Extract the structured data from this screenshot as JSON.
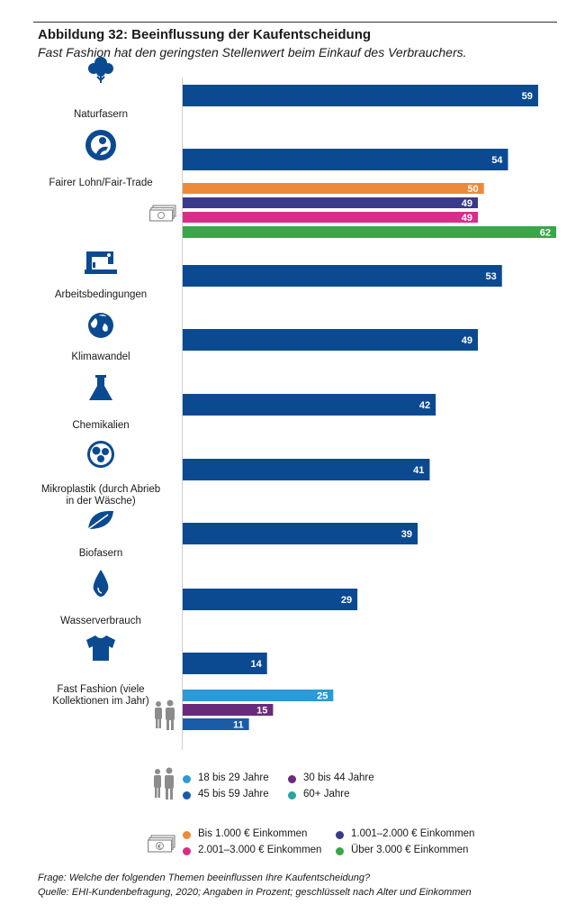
{
  "header": {
    "title": "Abbildung 32: Beeinflussung der Kaufentscheidung",
    "subtitle": "Fast Fashion hat den geringsten Stellenwert beim Einkauf des Verbrauchers."
  },
  "colors": {
    "total": "#0b4a91",
    "age_18_29": "#2b9ad6",
    "age_30_44": "#6a2a7c",
    "age_45_59": "#1a5ca8",
    "age_60plus": "#26a6a0",
    "inc_bis_1000": "#ec8a3a",
    "inc_1001_2000": "#3a3a8c",
    "inc_2001_3000": "#d92d8a",
    "inc_ueber_3000": "#3aa64a",
    "icon": "#0b4a91",
    "people_icon": "#8c8c8c"
  },
  "chart_data": {
    "type": "bar",
    "orientation": "horizontal",
    "unit": "Prozent",
    "xlim": [
      0,
      62
    ],
    "categories": [
      {
        "label": "Naturfasern",
        "icon": "cotton-plant-icon",
        "bars": [
          {
            "series": "total",
            "value": 59
          }
        ]
      },
      {
        "label": "Fairer Lohn/Fair-Trade",
        "icon": "handshake-icon",
        "bars": [
          {
            "series": "total",
            "value": 54
          },
          {
            "series": "inc_bis_1000",
            "value": 50
          },
          {
            "series": "inc_1001_2000",
            "value": 49
          },
          {
            "series": "inc_2001_3000",
            "value": 49
          },
          {
            "series": "inc_ueber_3000",
            "value": 62
          }
        ]
      },
      {
        "label": "Arbeitsbedingungen",
        "icon": "sewing-machine-icon",
        "bars": [
          {
            "series": "total",
            "value": 53
          }
        ]
      },
      {
        "label": "Klimawandel",
        "icon": "globe-icon",
        "bars": [
          {
            "series": "total",
            "value": 49
          }
        ]
      },
      {
        "label": "Chemikalien",
        "icon": "flask-icon",
        "bars": [
          {
            "series": "total",
            "value": 42
          }
        ]
      },
      {
        "label": "Mikroplastik (durch Abrieb\nin der Wäsche)",
        "icon": "microplastic-icon",
        "bars": [
          {
            "series": "total",
            "value": 41
          }
        ]
      },
      {
        "label": "Biofasern",
        "icon": "leaf-icon",
        "bars": [
          {
            "series": "total",
            "value": 39
          }
        ]
      },
      {
        "label": "Wasserverbrauch",
        "icon": "water-drop-icon",
        "bars": [
          {
            "series": "total",
            "value": 29
          }
        ]
      },
      {
        "label": "Fast Fashion (viele\nKollektionen im Jahr)",
        "icon": "tshirt-icon",
        "bars": [
          {
            "series": "total",
            "value": 14
          },
          {
            "series": "age_18_29",
            "value": 25
          },
          {
            "series": "age_30_44",
            "value": 15
          },
          {
            "series": "age_45_59",
            "value": 11
          },
          {
            "series": "age_60plus",
            "value": 0
          }
        ]
      }
    ],
    "legend_age": [
      {
        "series": "age_18_29",
        "label": "18 bis 29 Jahre"
      },
      {
        "series": "age_30_44",
        "label": "30 bis 44 Jahre"
      },
      {
        "series": "age_45_59",
        "label": "45 bis 59 Jahre"
      },
      {
        "series": "age_60plus",
        "label": "60+ Jahre"
      }
    ],
    "legend_income": [
      {
        "series": "inc_bis_1000",
        "label": "Bis 1.000 € Einkommen"
      },
      {
        "series": "inc_1001_2000",
        "label": "1.001–2.000 € Einkommen"
      },
      {
        "series": "inc_2001_3000",
        "label": "2.001–3.000 € Einkommen"
      },
      {
        "series": "inc_ueber_3000",
        "label": "Über 3.000 € Einkommen"
      }
    ]
  },
  "footer": {
    "question": "Frage: Welche der folgenden Themen beeinflussen Ihre Kaufentscheidung?",
    "source": "Quelle: EHI-Kundenbefragung, 2020; Angaben in Prozent; geschlüsselt nach Alter und Einkommen"
  }
}
